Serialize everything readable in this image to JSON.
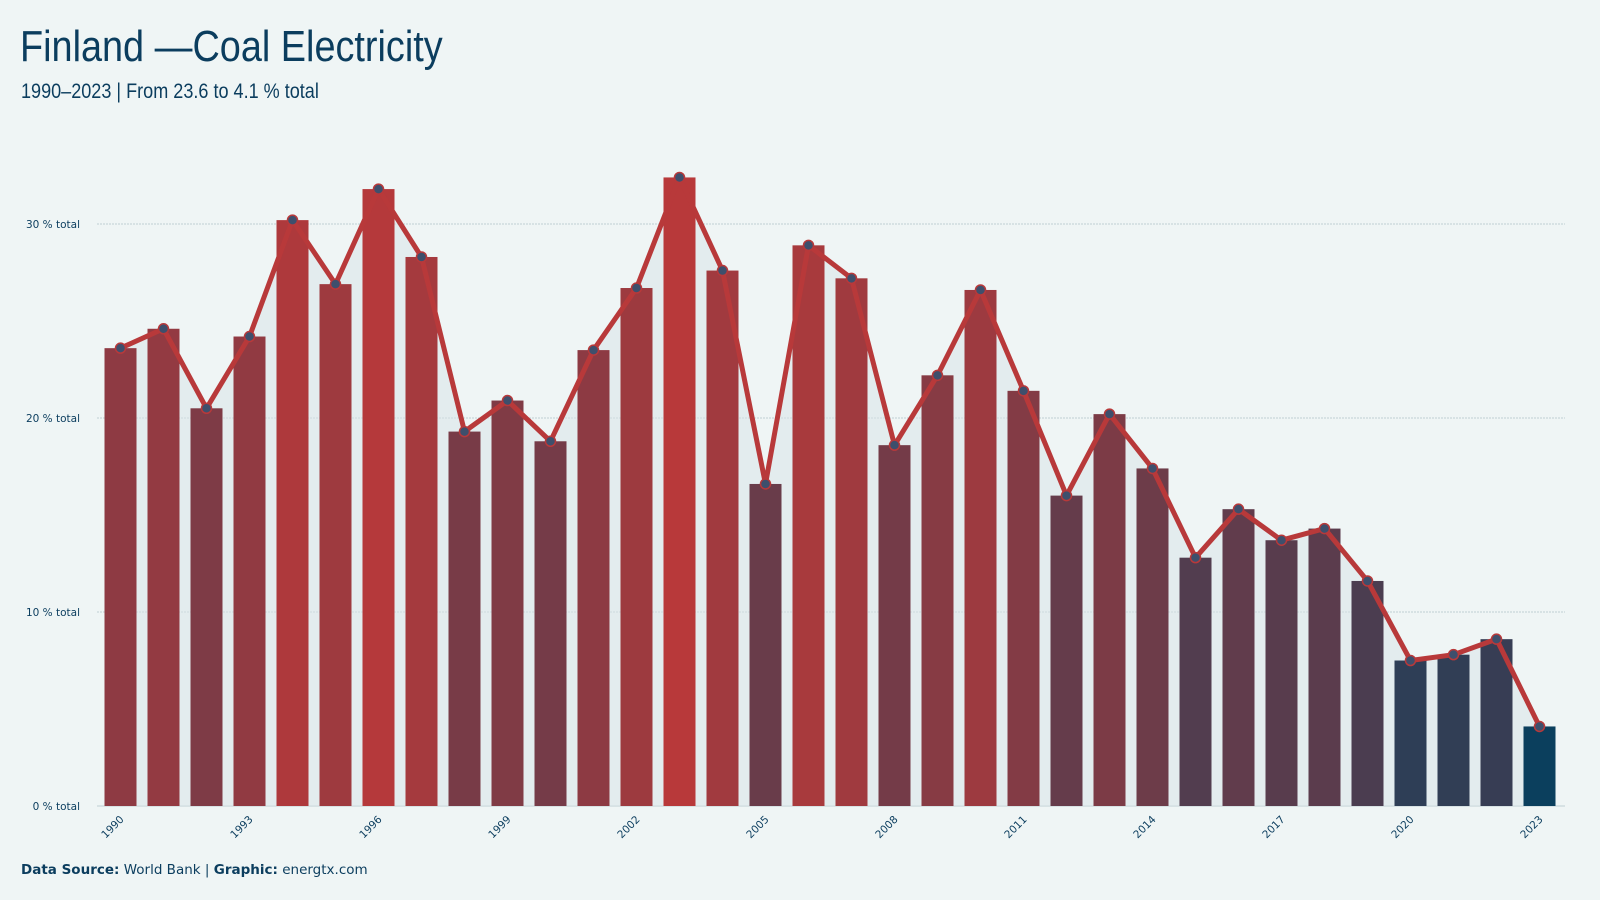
{
  "title": "Finland —Coal Electricity",
  "subtitle": "1990–2023 | From 23.6 to 4.1 % total",
  "footer": {
    "source_label": "Data Source:",
    "source_value": "World Bank",
    "separator": "|",
    "graphic_label": "Graphic:",
    "graphic_value": "energtx.com"
  },
  "colors": {
    "background": "#eff5f5",
    "bar_high": "#b8393a",
    "bar_low": "#0b3f5d",
    "line": "#b8393a",
    "marker_fill": "#3e4f6c",
    "grid": "#bfcfd4",
    "area": "#d8e3e8"
  },
  "chart_data": {
    "type": "bar",
    "overlay": "line",
    "x": [
      1990,
      1991,
      1992,
      1993,
      1994,
      1995,
      1996,
      1997,
      1998,
      1999,
      2000,
      2001,
      2002,
      2003,
      2004,
      2005,
      2006,
      2007,
      2008,
      2009,
      2010,
      2011,
      2012,
      2013,
      2014,
      2015,
      2016,
      2017,
      2018,
      2019,
      2020,
      2021,
      2022,
      2023
    ],
    "values": [
      23.6,
      24.6,
      20.5,
      24.2,
      30.2,
      26.9,
      31.8,
      28.3,
      19.3,
      20.9,
      18.8,
      23.5,
      26.7,
      32.4,
      27.6,
      16.6,
      28.9,
      27.2,
      18.6,
      22.2,
      26.6,
      21.4,
      16.0,
      20.2,
      17.4,
      12.8,
      15.3,
      13.7,
      14.3,
      11.6,
      7.5,
      7.8,
      8.6,
      4.1
    ],
    "xticks": [
      "1990",
      "1993",
      "1996",
      "1999",
      "2002",
      "2005",
      "2008",
      "2011",
      "2014",
      "2017",
      "2020",
      "2023"
    ],
    "yticks": [
      {
        "value": 0,
        "label": "0 % total"
      },
      {
        "value": 10,
        "label": "10 % total"
      },
      {
        "value": 20,
        "label": "20 % total"
      },
      {
        "value": 30,
        "label": "30 % total"
      }
    ],
    "ylim": [
      0,
      34
    ],
    "grid": true
  }
}
